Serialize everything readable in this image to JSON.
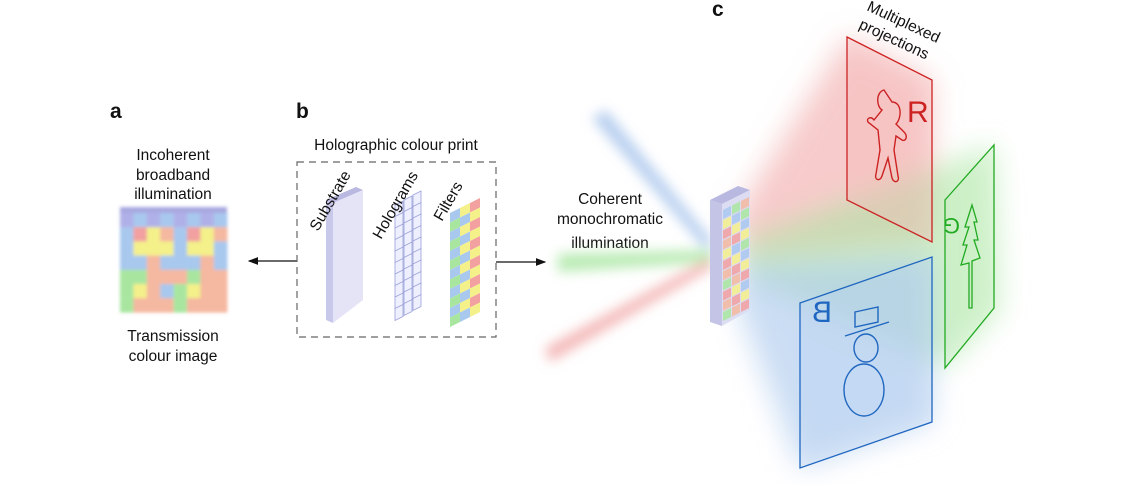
{
  "panels": {
    "a": {
      "letter": "a",
      "top_label": [
        "Incoherent",
        "broadband",
        "illumination"
      ],
      "bottom_label": [
        "Transmission",
        "colour image"
      ]
    },
    "b": {
      "letter": "b",
      "title": "Holographic colour print",
      "layers": [
        "Substrate",
        "Holograms",
        "Filters"
      ]
    },
    "c": {
      "letter": "c",
      "title": [
        "Multiplexed",
        "projections"
      ],
      "illumination": [
        "Coherent",
        "monochromatic",
        "illumination"
      ],
      "projections": [
        {
          "letter": "R",
          "color": "#cc2222",
          "image": "gingerbread-man"
        },
        {
          "letter": "G",
          "color": "#22aa22",
          "image": "tree"
        },
        {
          "letter": "B",
          "color": "#1f66c0",
          "image": "snowman"
        }
      ]
    }
  },
  "colors": {
    "red": "#f2a0a0",
    "green": "#a8e6a0",
    "blue": "#a8c8ee",
    "yellow": "#f4f08a",
    "salmon": "#f5b8a0"
  }
}
